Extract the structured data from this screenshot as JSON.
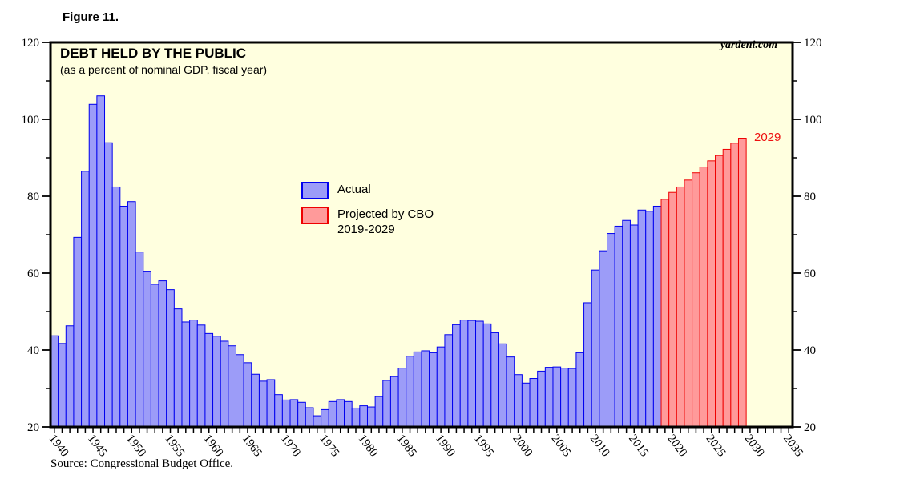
{
  "figure_label": "Figure 11.",
  "watermark": "yardeni.com",
  "annotation_2029": "2029",
  "source": "Source: Congressional Budget Office.",
  "colors": {
    "plot_background": "#FFFFDF",
    "actual_fill": "#9C9CF8",
    "actual_border": "#0000EE",
    "projected_fill": "#FF9A9A",
    "projected_border": "#EE0000",
    "frame": "#000000",
    "annotation": "#EE1111"
  },
  "chart_data": {
    "type": "bar",
    "title": "DEBT HELD BY THE PUBLIC",
    "subtitle": "(as a percent of nominal GDP, fiscal year)",
    "grid": false,
    "ylim": [
      20,
      120
    ],
    "y_major_ticks": [
      20,
      40,
      60,
      80,
      100,
      120
    ],
    "y_minor_ticks": [
      30,
      50,
      70,
      90,
      110
    ],
    "xlim": [
      1939.5,
      2035.5
    ],
    "x_tick_every_year_from": 1940,
    "x_tick_every_year_to": 2035,
    "x_label_years": [
      1940,
      1945,
      1950,
      1955,
      1960,
      1965,
      1970,
      1975,
      1980,
      1985,
      1990,
      1995,
      2000,
      2005,
      2010,
      2015,
      2020,
      2025,
      2030,
      2035
    ],
    "legend": [
      {
        "label": "Actual"
      },
      {
        "label_line1": "Projected by CBO",
        "label_line2": "2019-2029"
      }
    ],
    "legend_position": "inside center-left",
    "series": [
      {
        "name": "Actual",
        "start_year": 1940,
        "values": [
          43.7,
          41.7,
          46.3,
          69.3,
          86.5,
          103.9,
          106.1,
          93.9,
          82.4,
          77.4,
          78.6,
          65.5,
          60.5,
          57.1,
          58.0,
          55.7,
          50.7,
          47.3,
          47.8,
          46.5,
          44.3,
          43.6,
          42.3,
          41.1,
          38.8,
          36.7,
          33.7,
          31.9,
          32.3,
          28.4,
          27.0,
          27.1,
          26.4,
          25.0,
          22.9,
          24.5,
          26.6,
          27.1,
          26.6,
          24.9,
          25.5,
          25.2,
          27.9,
          32.1,
          33.1,
          35.3,
          38.4,
          39.5,
          39.8,
          39.3,
          40.8,
          44.0,
          46.6,
          47.8,
          47.7,
          47.5,
          46.8,
          44.5,
          41.6,
          38.2,
          33.6,
          31.4,
          32.6,
          34.5,
          35.5,
          35.6,
          35.3,
          35.2,
          39.3,
          52.3,
          60.8,
          65.8,
          70.3,
          72.2,
          73.7,
          72.5,
          76.4,
          76.1,
          77.4
        ]
      },
      {
        "name": "Projected by CBO 2019-2029",
        "start_year": 2019,
        "values": [
          79.2,
          81.0,
          82.4,
          84.2,
          86.1,
          87.6,
          89.2,
          90.6,
          92.2,
          93.8,
          95.1
        ]
      }
    ]
  }
}
